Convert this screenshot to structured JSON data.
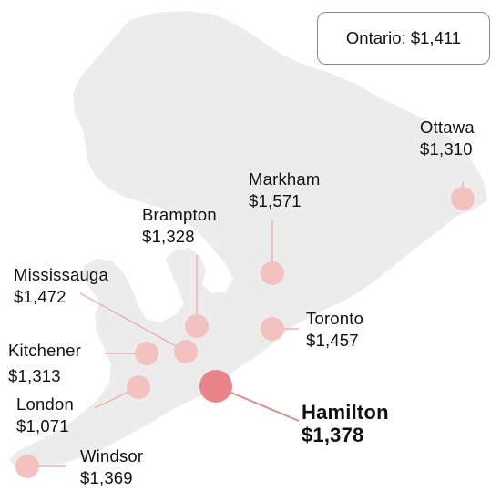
{
  "province_average": {
    "region": "Ontario",
    "value": "$1,411"
  },
  "cities": [
    {
      "name": "Ottawa",
      "value": "$1,310"
    },
    {
      "name": "Markham",
      "value": "$1,571"
    },
    {
      "name": "Brampton",
      "value": "$1,328"
    },
    {
      "name": "Mississauga",
      "value": "$1,472"
    },
    {
      "name": "Toronto",
      "value": "$1,457"
    },
    {
      "name": "Kitchener",
      "value": "$1,313"
    },
    {
      "name": "London",
      "value": "$1,071"
    },
    {
      "name": "Hamilton",
      "value": "$1,378",
      "highlighted": true
    },
    {
      "name": "Windsor",
      "value": "$1,369"
    }
  ],
  "colors": {
    "land": "#ececec",
    "marker": "#f4c1c1",
    "highlight_marker": "#e9858a",
    "leader": "#efb2b2"
  }
}
